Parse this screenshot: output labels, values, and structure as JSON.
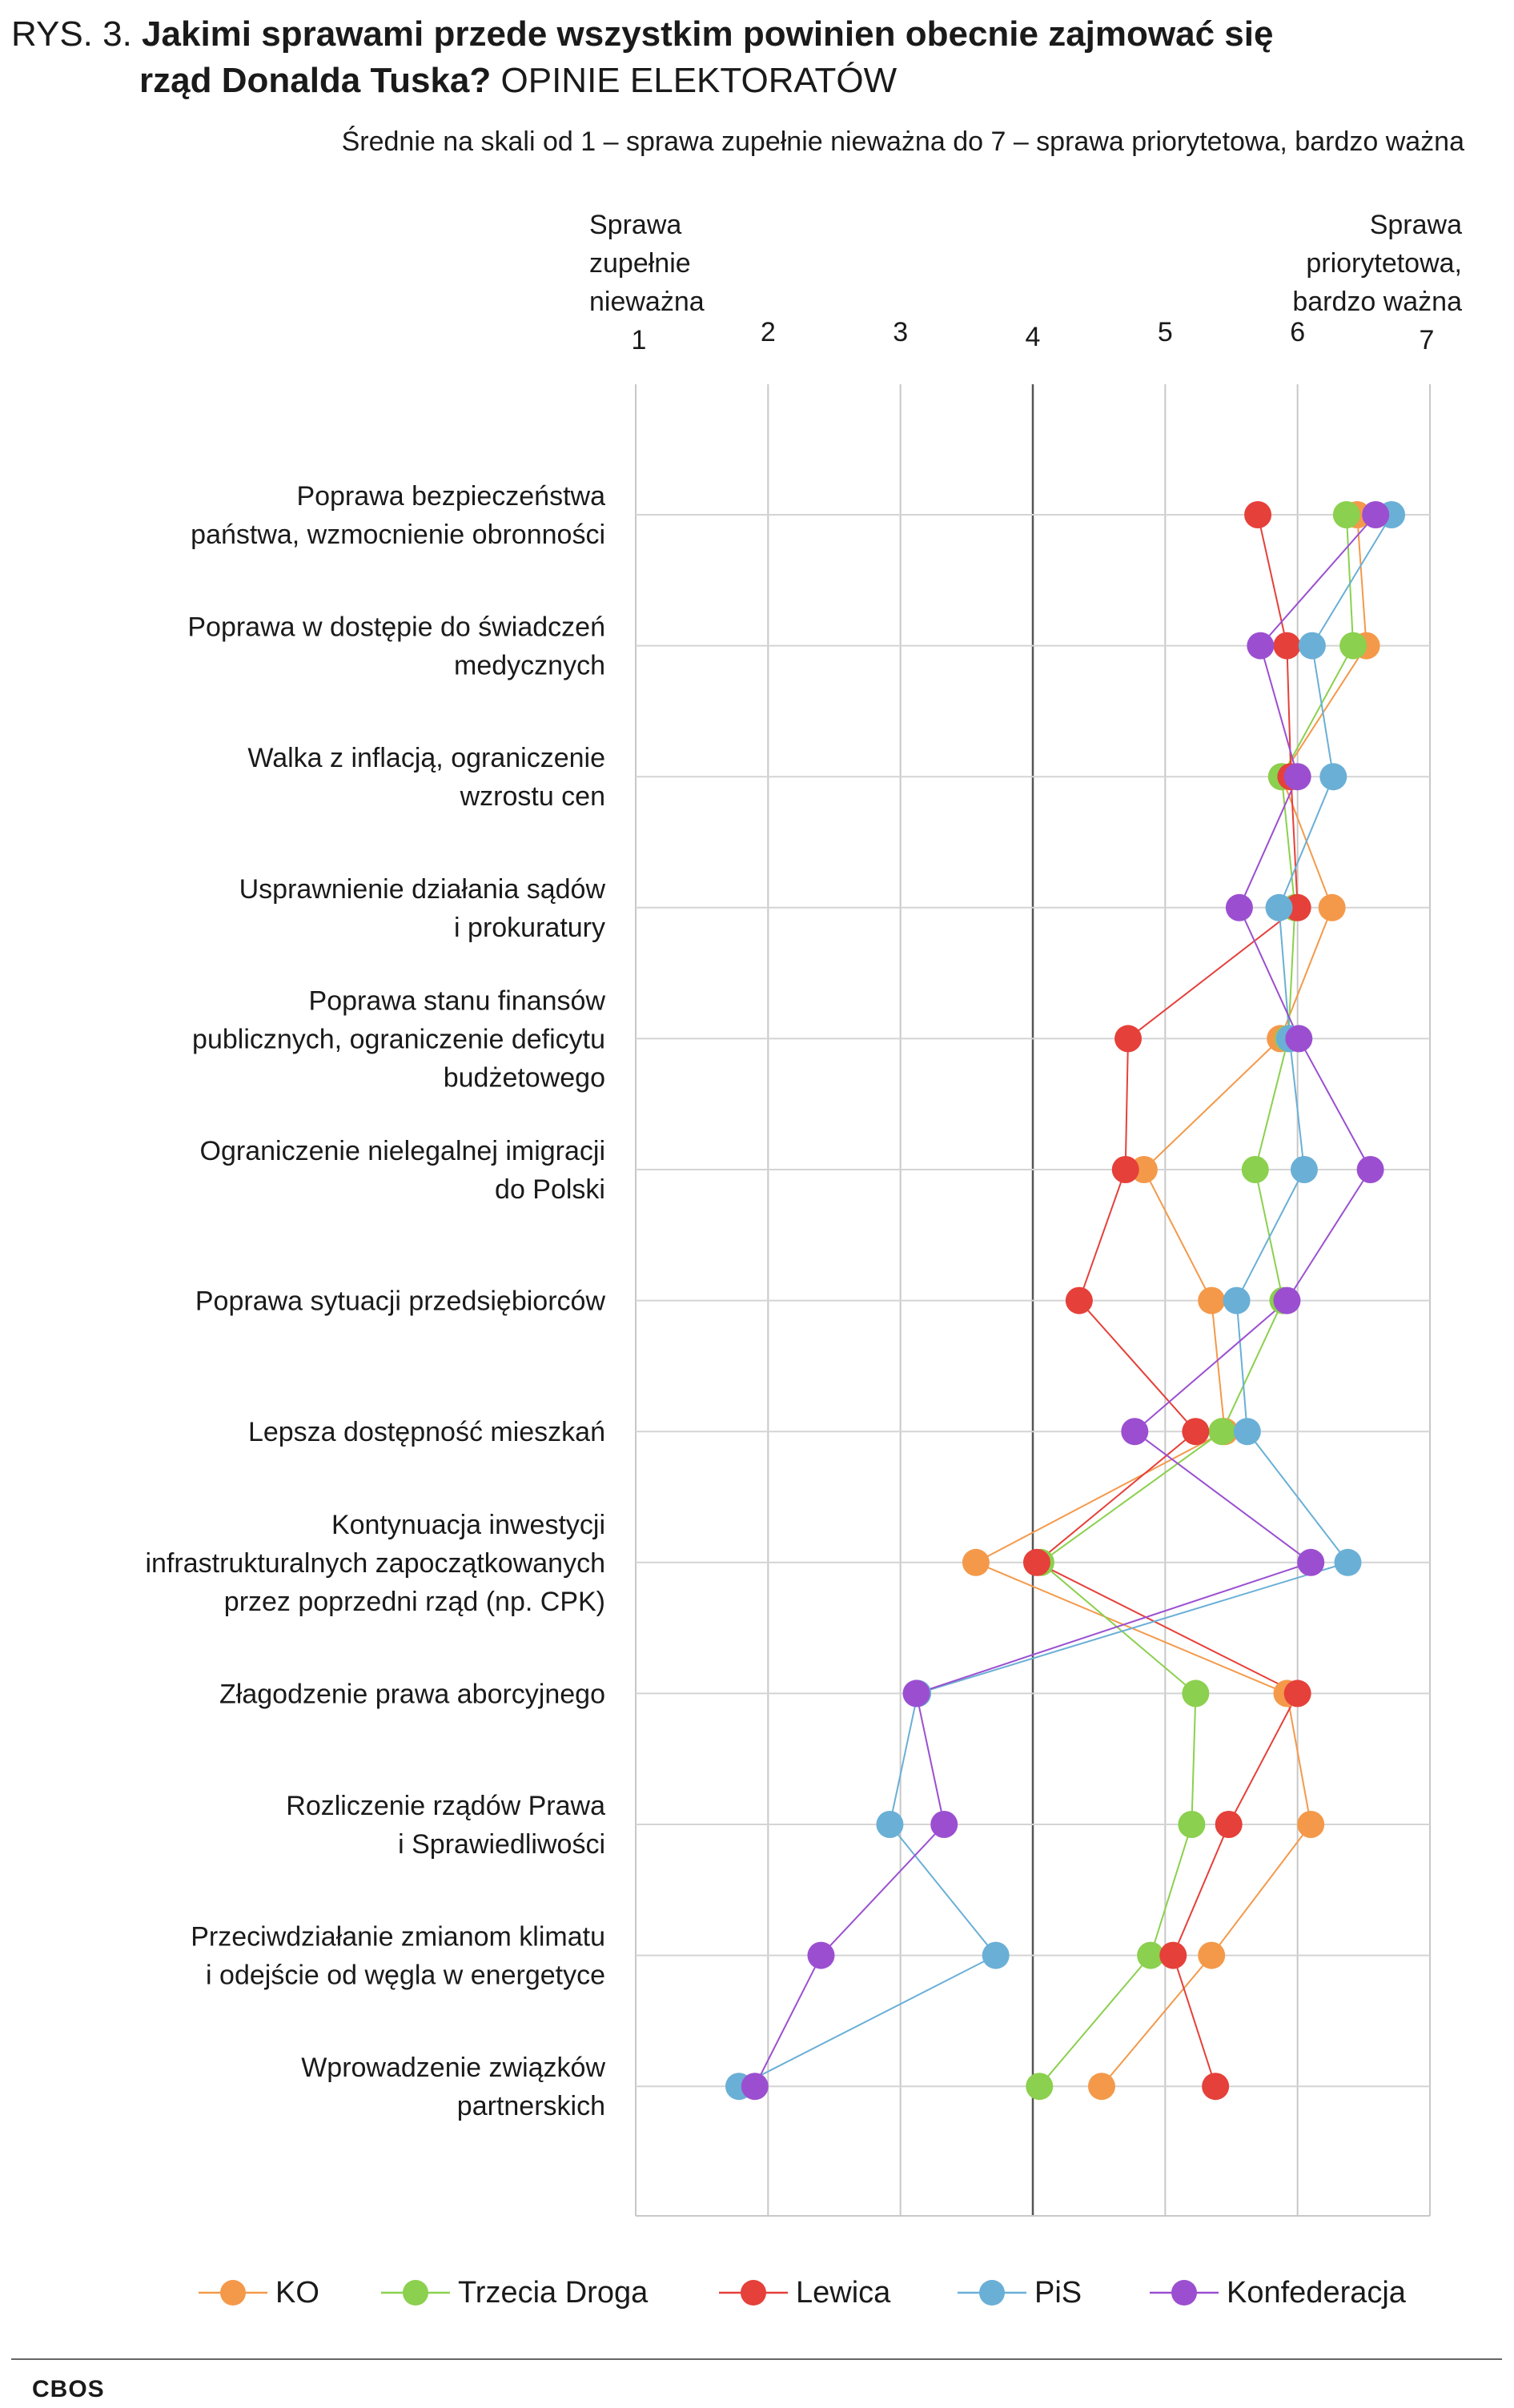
{
  "header": {
    "title_prefix": "RYS. 3. ",
    "title_bold_1": "Jakimi sprawami przede wszystkim powinien obecnie zajmować się",
    "title_bold_2": "rząd Donalda Tuska?",
    "title_rest": " OPINIE ELEKTORATÓW",
    "subtitle": "Średnie na skali od 1 – sprawa zupełnie nieważna do 7 – sprawa priorytetowa, bardzo ważna"
  },
  "footer": {
    "source": "CBOS"
  },
  "chart_data": {
    "type": "line",
    "orientation": "horizontal-dot-plot",
    "xlim": [
      1,
      7
    ],
    "x_ticks": [
      1,
      2,
      3,
      4,
      5,
      6,
      7
    ],
    "x_low_label": [
      "Sprawa",
      "zupełnie",
      "nieważna"
    ],
    "x_high_label": [
      "Sprawa",
      "priorytetowa,",
      "bardzo ważna"
    ],
    "grid": true,
    "legend_position": "bottom",
    "categories": [
      [
        "Poprawa bezpieczeństwa",
        "państwa, wzmocnienie obronności"
      ],
      [
        "Poprawa w dostępie do świadczeń",
        "medycznych"
      ],
      [
        "Walka z inflacją, ograniczenie",
        "wzrostu cen"
      ],
      [
        "Usprawnienie działania sądów",
        "i prokuratury"
      ],
      [
        "Poprawa stanu finansów",
        "publicznych, ograniczenie deficytu",
        "budżetowego"
      ],
      [
        "Ograniczenie nielegalnej imigracji",
        "do Polski"
      ],
      [
        "Poprawa sytuacji przedsiębiorców"
      ],
      [
        "Lepsza dostępność mieszkań"
      ],
      [
        "Kontynuacja inwestycji",
        "infrastrukturalnych zapoczątkowanych",
        "przez poprzedni rząd (np. CPK)"
      ],
      [
        "Złagodzenie prawa aborcyjnego"
      ],
      [
        "Rozliczenie rządów Prawa",
        "i Sprawiedliwości"
      ],
      [
        "Przeciwdziałanie zmianom klimatu",
        "i odejście od węgla w energetyce"
      ],
      [
        "Wprowadzenie związków",
        "partnerskich"
      ]
    ],
    "series": [
      {
        "name": "KO",
        "color": "#F4994A",
        "values": [
          6.45,
          6.52,
          5.88,
          6.26,
          5.87,
          4.84,
          5.35,
          5.45,
          3.57,
          5.92,
          6.1,
          5.35,
          4.52
        ]
      },
      {
        "name": "Trzecia Droga",
        "color": "#8BD04E",
        "values": [
          6.37,
          6.42,
          5.88,
          5.98,
          5.93,
          5.68,
          5.89,
          5.43,
          4.06,
          5.23,
          5.2,
          4.89,
          4.05
        ]
      },
      {
        "name": "Lewica",
        "color": "#E5403A",
        "values": [
          5.7,
          5.92,
          5.95,
          6.0,
          4.72,
          4.7,
          4.35,
          5.23,
          4.03,
          6.0,
          5.48,
          5.06,
          5.38
        ]
      },
      {
        "name": "PiS",
        "color": "#6AAFD6",
        "values": [
          6.71,
          6.11,
          6.27,
          5.86,
          5.94,
          6.05,
          5.54,
          5.62,
          6.38,
          3.13,
          2.92,
          3.72,
          1.78
        ]
      },
      {
        "name": "Konfederacja",
        "color": "#9B4FD0",
        "values": [
          6.59,
          5.72,
          6.0,
          5.56,
          6.01,
          6.55,
          5.92,
          4.77,
          6.1,
          3.12,
          3.33,
          2.4,
          1.9
        ]
      }
    ]
  }
}
